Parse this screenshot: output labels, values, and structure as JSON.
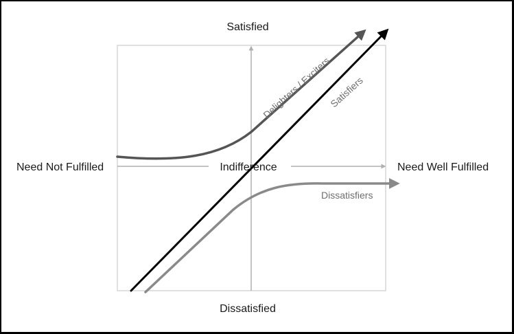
{
  "axes": {
    "top_label": "Satisfied",
    "bottom_label": "Dissatisfied",
    "left_label": "Need Not Fulfilled",
    "right_label": "Need Well Fulfilled",
    "center_label": "Indifference"
  },
  "curves": {
    "delighters": {
      "label": "Delighters / Exciters",
      "color": "#555555"
    },
    "satisfiers": {
      "label": "Satisfiers",
      "color": "#000000"
    },
    "dissatisfiers": {
      "label": "Dissatisfiers",
      "color": "#8a8a8a"
    }
  },
  "colors": {
    "box_border": "#d6d6d6",
    "axis": "#b0b0b0",
    "frame": "#000000"
  }
}
